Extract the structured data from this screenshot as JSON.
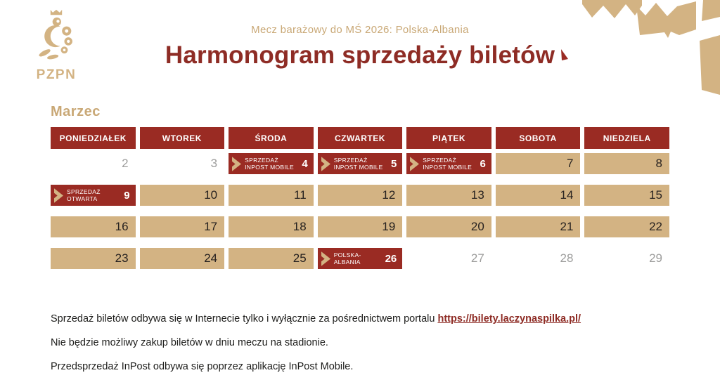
{
  "colors": {
    "brand_red": "#9a2b23",
    "title_red": "#8e2c25",
    "tan": "#d3b383",
    "tan_text": "#c9a876",
    "inactive_gray": "#9d9d9c",
    "ink": "#1d1d1b",
    "day_ink": "#272220"
  },
  "header": {
    "subtitle": "Mecz barażowy do MŚ 2026: Polska-Albania",
    "title": "Harmonogram sprzedaży biletów",
    "logo_text": "PZPN"
  },
  "calendar": {
    "month_label": "Marzec",
    "weekdays": [
      "PONIEDZIAŁEK",
      "WTOREK",
      "ŚRODA",
      "CZWARTEK",
      "PIĄTEK",
      "SOBOTA",
      "NIEDZIELA"
    ],
    "weeks": [
      [
        {
          "day": 2,
          "type": "inactive"
        },
        {
          "day": 3,
          "type": "inactive"
        },
        {
          "day": 4,
          "type": "event",
          "label_lines": [
            "SPRZEDAŻ",
            "INPOST MOBILE"
          ]
        },
        {
          "day": 5,
          "type": "event",
          "label_lines": [
            "SPRZEDAŻ",
            "INPOST MOBILE"
          ]
        },
        {
          "day": 6,
          "type": "event",
          "label_lines": [
            "SPRZEDAŻ",
            "INPOST MOBILE"
          ]
        },
        {
          "day": 7,
          "type": "active"
        },
        {
          "day": 8,
          "type": "active"
        }
      ],
      [
        {
          "day": 9,
          "type": "event",
          "label_lines": [
            "SPRZEDAŻ",
            "OTWARTA"
          ]
        },
        {
          "day": 10,
          "type": "active"
        },
        {
          "day": 11,
          "type": "active"
        },
        {
          "day": 12,
          "type": "active"
        },
        {
          "day": 13,
          "type": "active"
        },
        {
          "day": 14,
          "type": "active"
        },
        {
          "day": 15,
          "type": "active"
        }
      ],
      [
        {
          "day": 16,
          "type": "active"
        },
        {
          "day": 17,
          "type": "active"
        },
        {
          "day": 18,
          "type": "active"
        },
        {
          "day": 19,
          "type": "active"
        },
        {
          "day": 20,
          "type": "active"
        },
        {
          "day": 21,
          "type": "active"
        },
        {
          "day": 22,
          "type": "active"
        }
      ],
      [
        {
          "day": 23,
          "type": "active"
        },
        {
          "day": 24,
          "type": "active"
        },
        {
          "day": 25,
          "type": "active"
        },
        {
          "day": 26,
          "type": "event",
          "label_lines": [
            "POLSKA-",
            "ALBANIA"
          ]
        },
        {
          "day": 27,
          "type": "inactive"
        },
        {
          "day": 28,
          "type": "inactive"
        },
        {
          "day": 29,
          "type": "inactive"
        }
      ]
    ]
  },
  "footer": {
    "note1_text": "Sprzedaż biletów odbywa się w Internecie tylko i wyłącznie za pośrednictwem portalu ",
    "note1_link": "https://bilety.laczynaspilka.pl/",
    "note2": "Nie będzie możliwy zakup biletów w dniu meczu na stadionie.",
    "note3": "Przedsprzedaż InPost odbywa się poprzez aplikację InPost Mobile."
  }
}
